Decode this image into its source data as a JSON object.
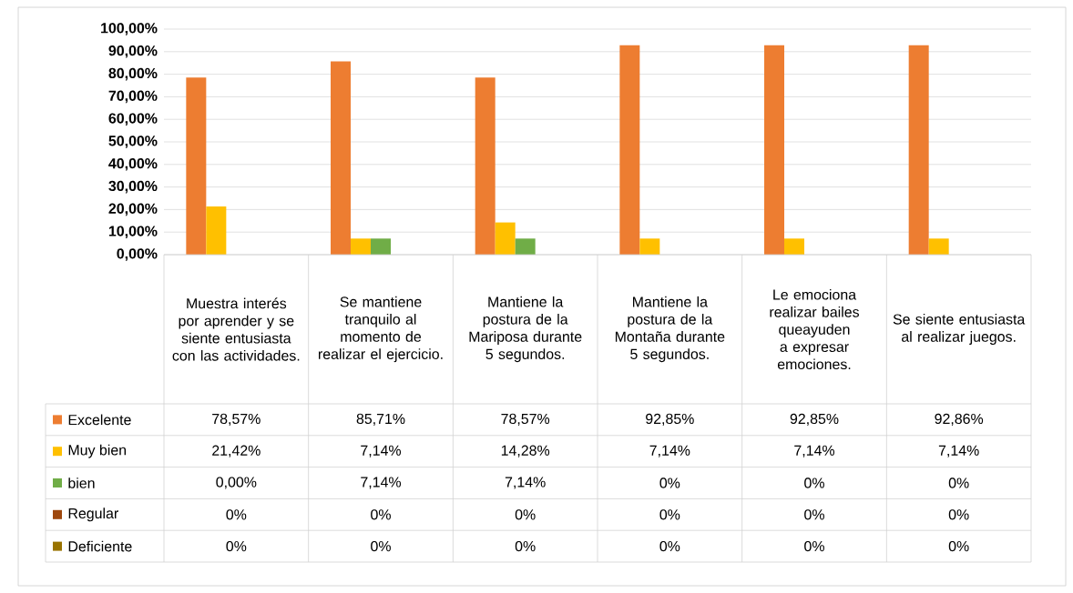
{
  "chart_data": {
    "type": "bar",
    "categories": [
      "Muestra interés por aprender y se siente entusiasta con las actividades.",
      "Se mantiene tranquilo al momento de realizar el ejercicio.",
      "Mantiene la postura de la Mariposa durante 5 segundos.",
      "Mantiene la postura de la Montaña durante 5 segundos.",
      "Le emociona realizar bailes queayuden a expresar emociones.",
      "Se siente entusiasta al realizar juegos."
    ],
    "series": [
      {
        "name": "Excelente",
        "color": "#ed7d31",
        "values": [
          78.57,
          85.71,
          78.57,
          92.85,
          92.85,
          92.86
        ],
        "value_labels": [
          "78,57%",
          "85,71%",
          "78,57%",
          "92,85%",
          "92,85%",
          "92,86%"
        ]
      },
      {
        "name": "Muy bien",
        "color": "#ffc000",
        "values": [
          21.42,
          7.14,
          14.28,
          7.14,
          7.14,
          7.14
        ],
        "value_labels": [
          "21,42%",
          "7,14%",
          "14,28%",
          "7,14%",
          "7,14%",
          "7,14%"
        ]
      },
      {
        "name": "bien",
        "color": "#70ad47",
        "values": [
          0,
          7.14,
          7.14,
          0,
          0,
          0
        ],
        "value_labels": [
          "0,00%",
          "7,14%",
          "7,14%",
          "0%",
          "0%",
          "0%"
        ]
      },
      {
        "name": "Regular",
        "color": "#9e480e",
        "values": [
          0,
          0,
          0,
          0,
          0,
          0
        ],
        "value_labels": [
          "0%",
          "0%",
          "0%",
          "0%",
          "0%",
          "0%"
        ]
      },
      {
        "name": "Deficiente",
        "color": "#997300",
        "values": [
          0,
          0,
          0,
          0,
          0,
          0
        ],
        "value_labels": [
          "0%",
          "0%",
          "0%",
          "0%",
          "0%",
          "0%"
        ]
      }
    ],
    "ylim": [
      0,
      100
    ],
    "yticks": [
      {
        "value": 0,
        "label": "0,00%"
      },
      {
        "value": 10,
        "label": "10,00%"
      },
      {
        "value": 20,
        "label": "20,00%"
      },
      {
        "value": 30,
        "label": "30,00%"
      },
      {
        "value": 40,
        "label": "40,00%"
      },
      {
        "value": 50,
        "label": "50,00%"
      },
      {
        "value": 60,
        "label": "60,00%"
      },
      {
        "value": 70,
        "label": "70,00%"
      },
      {
        "value": 80,
        "label": "80,00%"
      },
      {
        "value": 90,
        "label": "90,00%"
      },
      {
        "value": 100,
        "label": "100,00%"
      }
    ],
    "grid": "y",
    "legend": "bottom left"
  }
}
